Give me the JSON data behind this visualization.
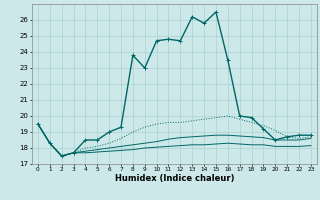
{
  "xlabel": "Humidex (Indice chaleur)",
  "bg_color": "#cce8e8",
  "grid_color": "#aad0d0",
  "line_color": "#006666",
  "xlim": [
    -0.5,
    23.5
  ],
  "ylim": [
    17,
    27
  ],
  "yticks": [
    17,
    18,
    19,
    20,
    21,
    22,
    23,
    24,
    25,
    26
  ],
  "xticks": [
    0,
    1,
    2,
    3,
    4,
    5,
    6,
    7,
    8,
    9,
    10,
    11,
    12,
    13,
    14,
    15,
    16,
    17,
    18,
    19,
    20,
    21,
    22,
    23
  ],
  "series": [
    {
      "x": [
        0,
        1,
        2,
        3,
        4,
        5,
        6,
        7,
        8,
        9,
        10,
        11,
        12,
        13,
        14,
        15,
        16,
        17,
        18,
        19,
        20,
        21,
        22,
        23
      ],
      "y": [
        19.5,
        18.3,
        17.5,
        17.7,
        18.5,
        18.5,
        19.0,
        19.3,
        23.8,
        23.0,
        24.7,
        24.8,
        24.7,
        26.2,
        25.8,
        26.5,
        23.5,
        20.0,
        19.9,
        19.2,
        18.5,
        18.7,
        18.8,
        18.8
      ],
      "style": "solid",
      "marker": "+"
    },
    {
      "x": [
        0,
        1,
        2,
        3,
        4,
        5,
        6,
        7,
        8,
        9,
        10,
        11,
        12,
        13,
        14,
        15,
        16,
        17,
        18,
        19,
        20,
        21,
        22,
        23
      ],
      "y": [
        19.5,
        18.3,
        17.5,
        17.7,
        18.0,
        18.1,
        18.3,
        18.6,
        19.0,
        19.3,
        19.5,
        19.6,
        19.6,
        19.7,
        19.8,
        19.9,
        20.0,
        19.8,
        19.6,
        19.4,
        19.1,
        18.7,
        18.6,
        18.7
      ],
      "style": "dotted",
      "marker": null
    },
    {
      "x": [
        0,
        1,
        2,
        3,
        4,
        5,
        6,
        7,
        8,
        9,
        10,
        11,
        12,
        13,
        14,
        15,
        16,
        17,
        18,
        19,
        20,
        21,
        22,
        23
      ],
      "y": [
        19.5,
        18.3,
        17.5,
        17.7,
        17.8,
        17.9,
        18.0,
        18.1,
        18.2,
        18.3,
        18.4,
        18.55,
        18.65,
        18.7,
        18.75,
        18.8,
        18.8,
        18.75,
        18.7,
        18.65,
        18.5,
        18.5,
        18.5,
        18.6
      ],
      "style": "solid",
      "marker": null
    },
    {
      "x": [
        0,
        1,
        2,
        3,
        4,
        5,
        6,
        7,
        8,
        9,
        10,
        11,
        12,
        13,
        14,
        15,
        16,
        17,
        18,
        19,
        20,
        21,
        22,
        23
      ],
      "y": [
        19.5,
        18.3,
        17.5,
        17.7,
        17.7,
        17.75,
        17.8,
        17.85,
        17.9,
        18.0,
        18.05,
        18.1,
        18.15,
        18.2,
        18.2,
        18.25,
        18.3,
        18.25,
        18.2,
        18.2,
        18.1,
        18.1,
        18.1,
        18.15
      ],
      "style": "solid",
      "marker": null
    }
  ]
}
